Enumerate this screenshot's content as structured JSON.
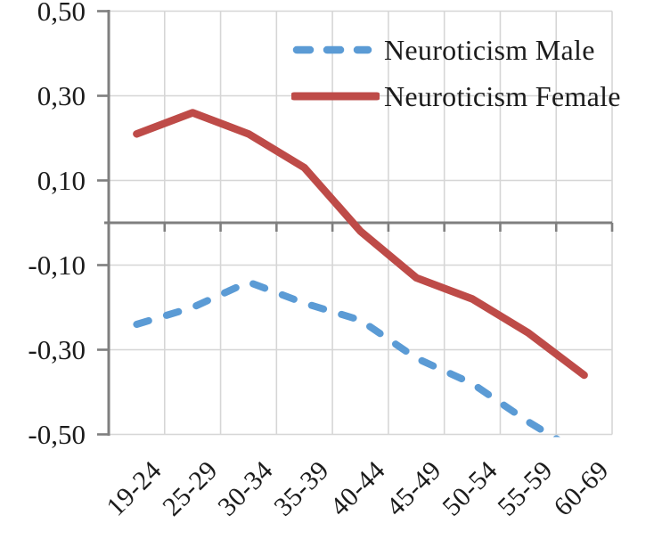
{
  "colors": {
    "male_blue": "#5B9BD5",
    "female_red": "#BE4B48",
    "gridline": "#D6D6D6",
    "axis_gray": "#7F7F7F",
    "text": "#1B1B1B",
    "background": "#FFFFFF"
  },
  "legend": {
    "items": [
      {
        "label": "Neuroticism Male"
      },
      {
        "label": "Neuroticism Female"
      }
    ]
  },
  "chart_data": {
    "type": "line",
    "categories": [
      "19-24",
      "25-29",
      "30-34",
      "35-39",
      "40-44",
      "45-49",
      "50-54",
      "55-59",
      "60-69"
    ],
    "series": [
      {
        "name": "Neuroticism Male",
        "style": "dashed",
        "color": "#5B9BD5",
        "values": [
          -0.24,
          -0.2,
          -0.14,
          -0.19,
          -0.23,
          -0.32,
          -0.38,
          -0.47,
          -0.55
        ],
        "last_point_clipped_at_ymin": true
      },
      {
        "name": "Neuroticism Female",
        "style": "solid",
        "color": "#BE4B48",
        "values": [
          0.21,
          0.26,
          0.21,
          0.13,
          -0.02,
          -0.13,
          -0.18,
          -0.26,
          -0.36
        ]
      }
    ],
    "title": "",
    "xlabel": "",
    "ylabel": "",
    "ylim": [
      -0.5,
      0.5
    ],
    "yticks": [
      {
        "value": 0.5,
        "label": "0,50"
      },
      {
        "value": 0.3,
        "label": "0,30"
      },
      {
        "value": 0.1,
        "label": "0,10"
      },
      {
        "value": -0.1,
        "label": "-0,10"
      },
      {
        "value": -0.3,
        "label": "-0,30"
      },
      {
        "value": -0.5,
        "label": "-0,50"
      }
    ],
    "decimal_separator": ",",
    "grid": "on",
    "zero_line": "on",
    "legend_position": "inside-top-right",
    "x_tick_label_rotation_deg": 45
  }
}
